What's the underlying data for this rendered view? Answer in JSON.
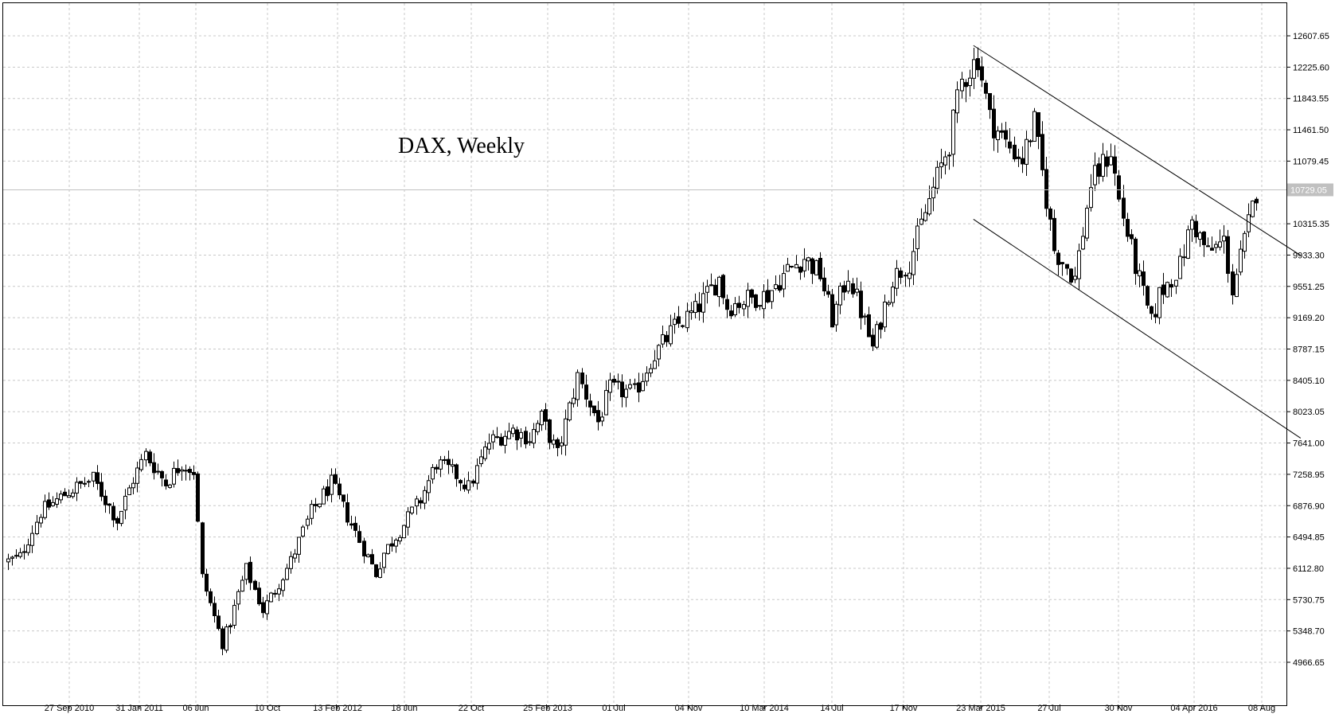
{
  "chart_data": {
    "type": "candlestick",
    "title": "DAX, Weekly",
    "current_price_label": "10729.05",
    "y_ticks": [
      "12607.65",
      "12225.60",
      "11843.55",
      "11461.50",
      "11079.45",
      "10315.35",
      "9933.30",
      "9551.25",
      "9169.20",
      "8787.15",
      "8405.10",
      "8023.05",
      "7641.00",
      "7258.95",
      "6876.90",
      "6494.85",
      "6112.80",
      "5730.75",
      "5348.70",
      "4966.65"
    ],
    "ylim": [
      4750,
      12800
    ],
    "x_labels": [
      "27 Sep 2010",
      "31 Jan 2011",
      "06 Jun",
      "10 Oct",
      "13 Feb 2012",
      "18 Jun",
      "22 Oct",
      "25 Feb 2013",
      "01 Jul",
      "04 Nov",
      "10 Mar 2014",
      "14 Jul",
      "17 Nov",
      "23 Mar 2015",
      "27 Jul",
      "30 Nov",
      "04 Apr 2016",
      "08 Aug"
    ],
    "grid": true,
    "anchors": [
      [
        "2010-09-06",
        6200
      ],
      [
        "2010-09-27",
        6250
      ],
      [
        "2010-11-01",
        6800
      ],
      [
        "2010-12-20",
        7050
      ],
      [
        "2011-01-31",
        7200
      ],
      [
        "2011-03-14",
        6700
      ],
      [
        "2011-04-11",
        7200
      ],
      [
        "2011-05-02",
        7500
      ],
      [
        "2011-06-06",
        7150
      ],
      [
        "2011-07-04",
        7400
      ],
      [
        "2011-07-25",
        7300
      ],
      [
        "2011-08-08",
        6000
      ],
      [
        "2011-09-12",
        5200
      ],
      [
        "2011-09-26",
        5450
      ],
      [
        "2011-10-10",
        5800
      ],
      [
        "2011-10-24",
        6100
      ],
      [
        "2011-11-21",
        5600
      ],
      [
        "2011-12-12",
        5850
      ],
      [
        "2012-01-09",
        6200
      ],
      [
        "2012-02-13",
        6800
      ],
      [
        "2012-03-19",
        7150
      ],
      [
        "2012-04-16",
        6750
      ],
      [
        "2012-05-14",
        6350
      ],
      [
        "2012-06-04",
        6050
      ],
      [
        "2012-06-18",
        6300
      ],
      [
        "2012-07-23",
        6650
      ],
      [
        "2012-08-20",
        6950
      ],
      [
        "2012-09-17",
        7400
      ],
      [
        "2012-10-22",
        7250
      ],
      [
        "2012-11-12",
        7100
      ],
      [
        "2012-12-17",
        7650
      ],
      [
        "2013-01-28",
        7800
      ],
      [
        "2013-02-25",
        7700
      ],
      [
        "2013-03-18",
        7950
      ],
      [
        "2013-04-15",
        7500
      ],
      [
        "2013-05-20",
        8450
      ],
      [
        "2013-06-24",
        7900
      ],
      [
        "2013-07-15",
        8300
      ],
      [
        "2013-08-26",
        8250
      ],
      [
        "2013-09-23",
        8650
      ],
      [
        "2013-11-04",
        9050
      ],
      [
        "2013-12-09",
        9250
      ],
      [
        "2014-01-20",
        9650
      ],
      [
        "2014-02-03",
        9300
      ],
      [
        "2014-03-10",
        9400
      ],
      [
        "2014-04-14",
        9450
      ],
      [
        "2014-05-19",
        9750
      ],
      [
        "2014-06-16",
        9900
      ],
      [
        "2014-07-14",
        9700
      ],
      [
        "2014-08-04",
        9150
      ],
      [
        "2014-09-01",
        9700
      ],
      [
        "2014-10-13",
        8800
      ],
      [
        "2014-10-27",
        9150
      ],
      [
        "2014-11-17",
        9650
      ],
      [
        "2014-12-15",
        9850
      ],
      [
        "2015-01-19",
        10600
      ],
      [
        "2015-02-23",
        11300
      ],
      [
        "2015-03-16",
        12050
      ],
      [
        "2015-04-13",
        12350
      ],
      [
        "2015-05-04",
        11600
      ],
      [
        "2015-06-01",
        11300
      ],
      [
        "2015-06-29",
        11100
      ],
      [
        "2015-07-20",
        11550
      ],
      [
        "2015-08-24",
        10000
      ],
      [
        "2015-09-28",
        9650
      ],
      [
        "2015-10-26",
        10800
      ],
      [
        "2015-11-30",
        11200
      ],
      [
        "2015-12-14",
        10600
      ],
      [
        "2016-01-11",
        9800
      ],
      [
        "2016-02-08",
        9100
      ],
      [
        "2016-02-22",
        9450
      ],
      [
        "2016-03-28",
        9800
      ],
      [
        "2016-04-18",
        10350
      ],
      [
        "2016-05-16",
        9950
      ],
      [
        "2016-06-13",
        10100
      ],
      [
        "2016-06-27",
        9500
      ],
      [
        "2016-07-18",
        10100
      ],
      [
        "2016-08-08",
        10713
      ]
    ],
    "trendlines": [
      {
        "from": [
          "2015-04-06",
          12490
        ],
        "to": [
          "2016-10-24",
          9930
        ]
      },
      {
        "from": [
          "2015-04-06",
          10370
        ],
        "to": [
          "2016-10-24",
          7700
        ]
      }
    ]
  }
}
